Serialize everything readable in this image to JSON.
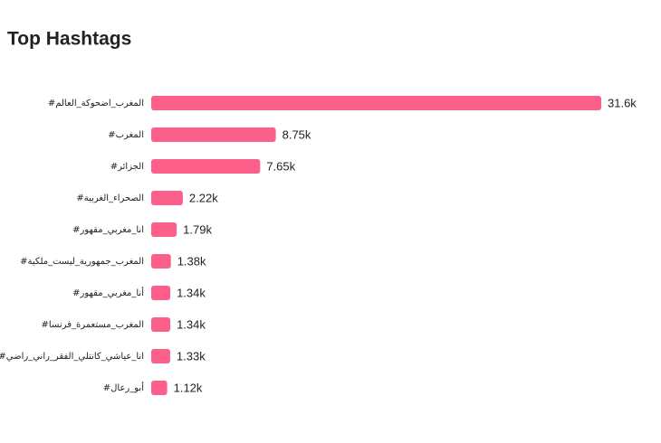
{
  "chart_data": {
    "type": "bar",
    "orientation": "horizontal",
    "title": "Top Hashtags",
    "categories": [
      "#المغرب_اضحوكة_العالم",
      "#المغرب",
      "#الجزائر",
      "#الصحراء_الغربية",
      "#انا_مغربي_مقهور",
      "#المغرب_جمهورية_ليست_ملكية",
      "#أنا_مغربي_مقهور",
      "#المغرب_مستعمرة_فرنسا",
      "#انا_عياشي_كانتلي_الفقر_راني_راضي",
      "#أبو_رعال"
    ],
    "values": [
      31600,
      8750,
      7650,
      2220,
      1790,
      1380,
      1340,
      1340,
      1330,
      1120
    ],
    "value_labels": [
      "31.6k",
      "8.75k",
      "7.65k",
      "2.22k",
      "1.79k",
      "1.38k",
      "1.34k",
      "1.34k",
      "1.33k",
      "1.12k"
    ],
    "color": "#fc5f8a"
  }
}
